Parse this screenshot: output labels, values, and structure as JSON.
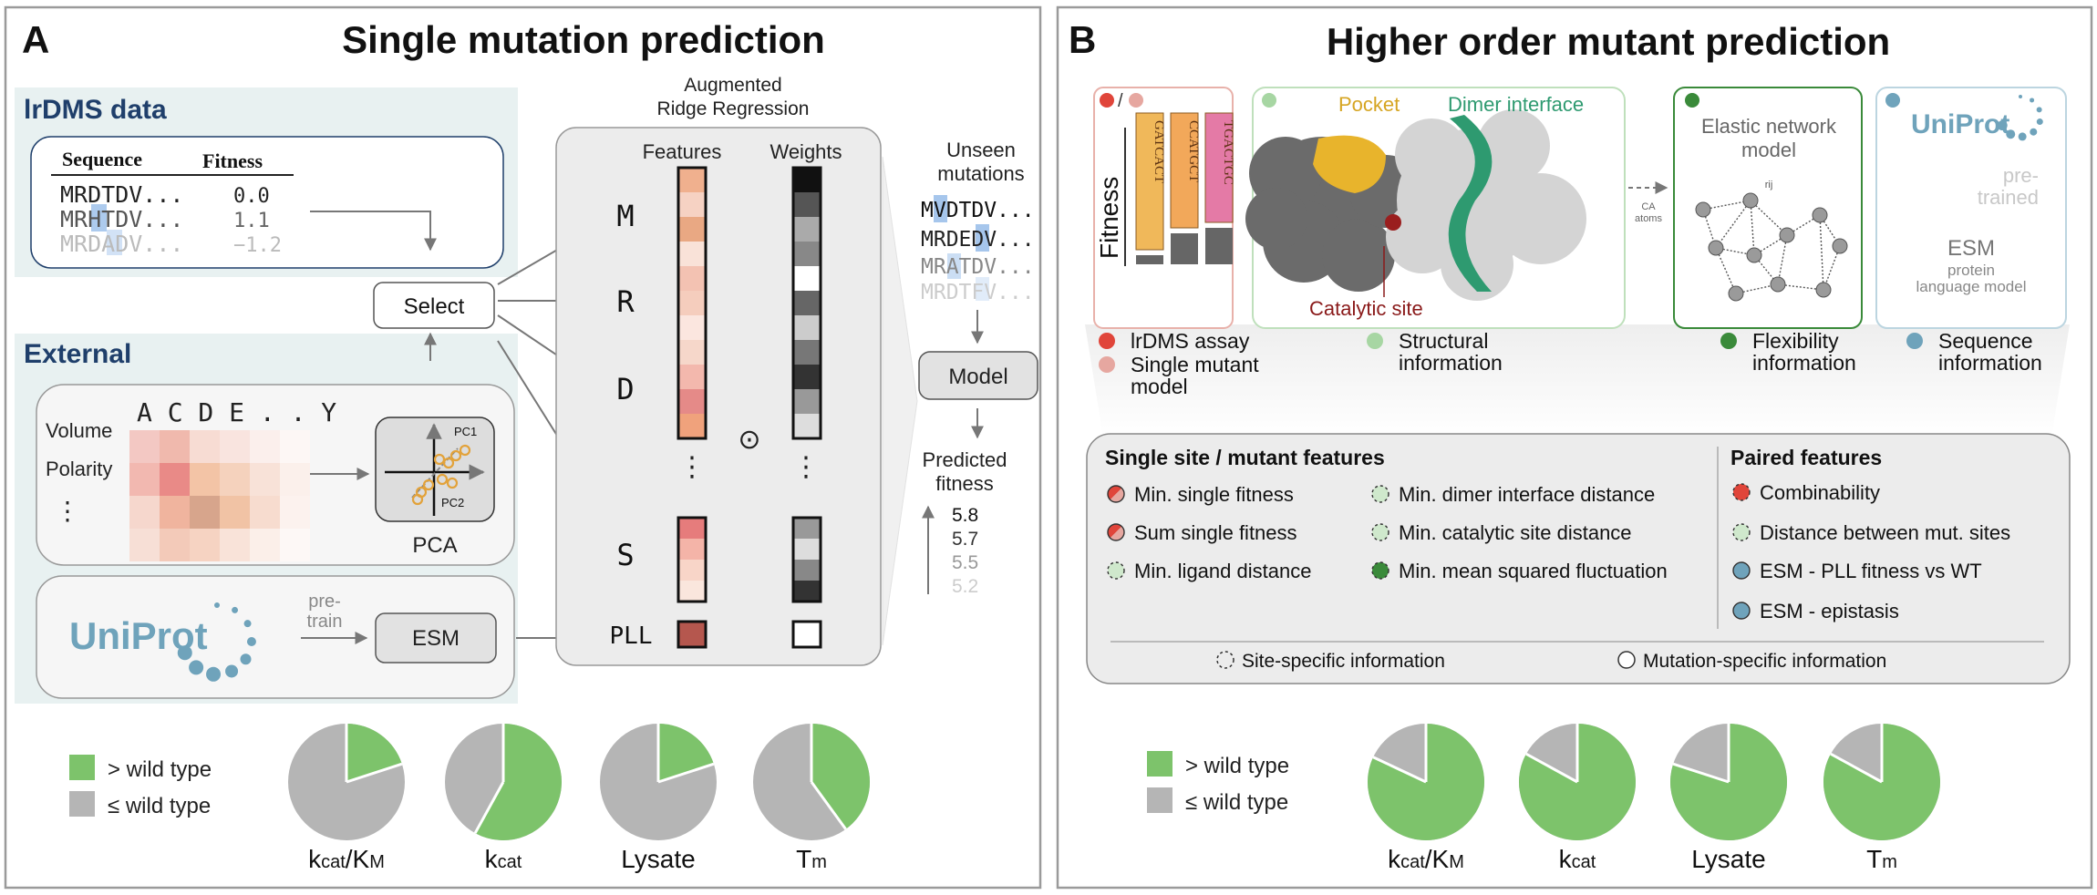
{
  "panel_a": {
    "letter": "A",
    "title": "Single mutation prediction",
    "lrdms": {
      "heading": "lrDMS data",
      "col_sequence": "Sequence",
      "col_fitness": "Fitness",
      "rows": [
        {
          "seq": "MRDTDV...",
          "fit": "0.0"
        },
        {
          "seq": "MRHTDV...",
          "fit": "1.1"
        },
        {
          "seq": "MRDADV...",
          "fit": "−1.2"
        }
      ]
    },
    "external": {
      "heading": "External",
      "aa_header": "A C D E . . Y",
      "properties": [
        "Volume",
        "Polarity",
        "⋮"
      ],
      "pca_label": "PCA",
      "pc1": "PC1",
      "pc2": "PC2",
      "uniprot": "UniProt",
      "pretrain": "pre-\ntrain",
      "esm": "ESM"
    },
    "select": "Select",
    "regression": {
      "title_line1": "Augmented",
      "title_line2": "Ridge Regression",
      "features": "Features",
      "weights": "Weights",
      "rows": [
        "M",
        "R",
        "D",
        "⋮",
        "S",
        "PLL"
      ],
      "dot": "⊙"
    },
    "unseen": {
      "title_line1": "Unseen",
      "title_line2": "mutations",
      "seqs": [
        "MVDTDV...",
        "MRDEDV...",
        "MRATDV...",
        "MRDTFV..."
      ]
    },
    "model": "Model",
    "predicted": {
      "title_line1": "Predicted",
      "title_line2": "fitness",
      "values": [
        "5.8",
        "5.7",
        "5.5",
        "5.2"
      ]
    },
    "legend": {
      "above": "> wild type",
      "below": "≤ wild type"
    },
    "pies": [
      {
        "label": "kcat/KM",
        "fraction_above": 0.2
      },
      {
        "label": "kcat",
        "fraction_above": 0.58
      },
      {
        "label": "Lysate",
        "fraction_above": 0.2
      },
      {
        "label": "Tm",
        "fraction_above": 0.4
      }
    ]
  },
  "panel_b": {
    "letter": "B",
    "title": "Higher order mutant prediction",
    "assay_bars": {
      "ylabel": "Fitness",
      "labels": [
        "GATCACT",
        "CCATGCT",
        "TGACTGC"
      ]
    },
    "structure": {
      "pocket": "Pocket",
      "dimer": "Dimer interface",
      "catalytic": "Catalytic site",
      "ca_atoms": "CA\natoms"
    },
    "enm": {
      "title_line1": "Elastic network",
      "title_line2": "model",
      "rij": "rij"
    },
    "uniprot": {
      "logo": "UniProt",
      "pretrained": "pre-\ntrained",
      "esm": "ESM",
      "esm_sub1": "protein",
      "esm_sub2": "language model"
    },
    "info_legend": [
      {
        "text": "lrDMS assay",
        "color": "#e0453a"
      },
      {
        "text": "Single mutant\nmodel",
        "color": "#e6a7a0"
      },
      {
        "text": "Structural\ninformation",
        "color": "#a7d6a3"
      },
      {
        "text": "Flexibility\ninformation",
        "color": "#3a8a3a"
      },
      {
        "text": "Sequence\ninformation",
        "color": "#6fa3bb"
      }
    ],
    "features": {
      "single_title": "Single site / mutant features",
      "paired_title": "Paired features",
      "single_col1": [
        "Min. single fitness",
        "Sum single fitness",
        "Min. ligand distance"
      ],
      "single_col2": [
        "Min. dimer interface distance",
        "Min. catalytic site distance",
        "Min. mean squared fluctuation"
      ],
      "paired": [
        "Combinability",
        "Distance between mut. sites",
        "ESM - PLL fitness vs WT",
        "ESM - epistasis"
      ],
      "footer_site": "Site-specific information",
      "footer_mut": "Mutation-specific information"
    },
    "legend": {
      "above": "> wild type",
      "below": "≤ wild type"
    },
    "pies": [
      {
        "label": "kcat/KM",
        "fraction_above": 0.82
      },
      {
        "label": "kcat",
        "fraction_above": 0.83
      },
      {
        "label": "Lysate",
        "fraction_above": 0.8
      },
      {
        "label": "Tm",
        "fraction_above": 0.83
      }
    ]
  },
  "colors": {
    "above": "#7dc36b",
    "below": "#b5b5b5",
    "navy": "#1f3f6b",
    "uniprot_teal": "#6fa3bb"
  }
}
